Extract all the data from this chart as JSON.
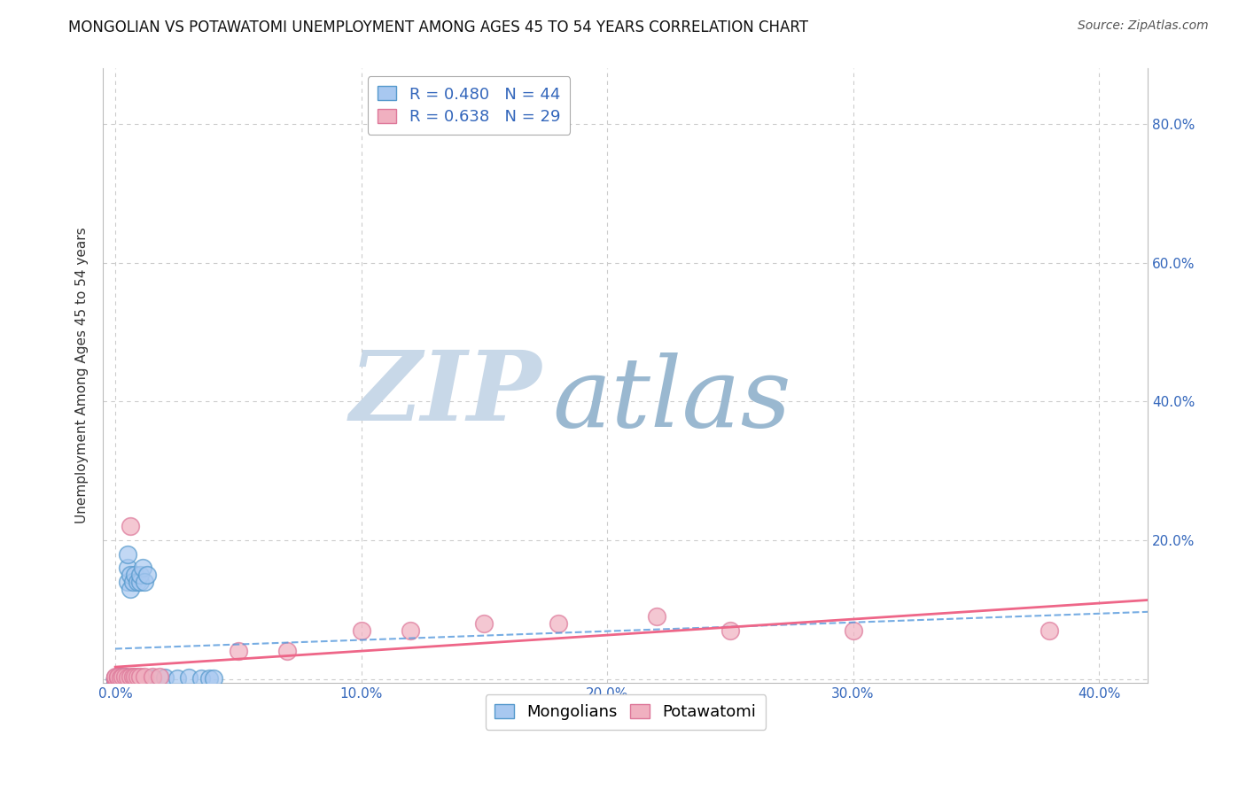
{
  "title": "MONGOLIAN VS POTAWATOMI UNEMPLOYMENT AMONG AGES 45 TO 54 YEARS CORRELATION CHART",
  "source": "Source: ZipAtlas.com",
  "xlim": [
    -0.005,
    0.42
  ],
  "ylim": [
    -0.005,
    0.88
  ],
  "xticks": [
    0.0,
    0.1,
    0.2,
    0.3,
    0.4
  ],
  "yticks": [
    0.0,
    0.2,
    0.4,
    0.6,
    0.8
  ],
  "xtick_labels": [
    "0.0%",
    "10.0%",
    "20.0%",
    "30.0%",
    "40.0%"
  ],
  "ytick_labels_right": [
    "",
    "20.0%",
    "40.0%",
    "60.0%",
    "80.0%"
  ],
  "mongolian_R": 0.48,
  "mongolian_N": 44,
  "potawatomi_R": 0.638,
  "potawatomi_N": 29,
  "mongolian_color": "#a8c8f0",
  "mongolian_edge_color": "#5599cc",
  "potawatomi_color": "#f0b0c0",
  "potawatomi_edge_color": "#dd7799",
  "mongolian_line_color": "#5599dd",
  "potawatomi_line_color": "#ee6688",
  "background_color": "#ffffff",
  "watermark_zip_color": "#c8d8e8",
  "watermark_atlas_color": "#9ab8d0",
  "title_fontsize": 12,
  "ylabel": "Unemployment Among Ages 45 to 54 years",
  "ylabel_fontsize": 11,
  "tick_fontsize": 11,
  "legend_fontsize": 13,
  "source_fontsize": 10,
  "mong_x": [
    0.0,
    0.0,
    0.0,
    0.0,
    0.0,
    0.0,
    0.0,
    0.0,
    0.001,
    0.001,
    0.001,
    0.001,
    0.001,
    0.002,
    0.002,
    0.002,
    0.002,
    0.003,
    0.003,
    0.003,
    0.003,
    0.004,
    0.004,
    0.004,
    0.005,
    0.005,
    0.005,
    0.006,
    0.006,
    0.007,
    0.008,
    0.009,
    0.01,
    0.01,
    0.011,
    0.012,
    0.013,
    0.015,
    0.02,
    0.025,
    0.03,
    0.035,
    0.038,
    0.04
  ],
  "mong_y": [
    0.0,
    0.0,
    0.0,
    0.0,
    0.0,
    0.001,
    0.001,
    0.002,
    0.0,
    0.001,
    0.001,
    0.002,
    0.003,
    0.0,
    0.001,
    0.002,
    0.003,
    0.0,
    0.001,
    0.002,
    0.003,
    0.001,
    0.002,
    0.003,
    0.14,
    0.16,
    0.18,
    0.13,
    0.15,
    0.14,
    0.15,
    0.14,
    0.14,
    0.15,
    0.16,
    0.14,
    0.15,
    0.001,
    0.002,
    0.001,
    0.002,
    0.001,
    0.001,
    0.001
  ],
  "pot_x": [
    0.0,
    0.0,
    0.0,
    0.0,
    0.001,
    0.001,
    0.002,
    0.003,
    0.004,
    0.005,
    0.006,
    0.007,
    0.008,
    0.009,
    0.01,
    0.012,
    0.015,
    0.018,
    0.006,
    0.05,
    0.07,
    0.1,
    0.12,
    0.15,
    0.18,
    0.22,
    0.25,
    0.3,
    0.38
  ],
  "pot_y": [
    0.0,
    0.001,
    0.002,
    0.003,
    0.002,
    0.003,
    0.002,
    0.003,
    0.003,
    0.002,
    0.003,
    0.003,
    0.003,
    0.004,
    0.003,
    0.004,
    0.004,
    0.004,
    0.22,
    0.04,
    0.04,
    0.07,
    0.07,
    0.08,
    0.08,
    0.09,
    0.07,
    0.07,
    0.07
  ]
}
